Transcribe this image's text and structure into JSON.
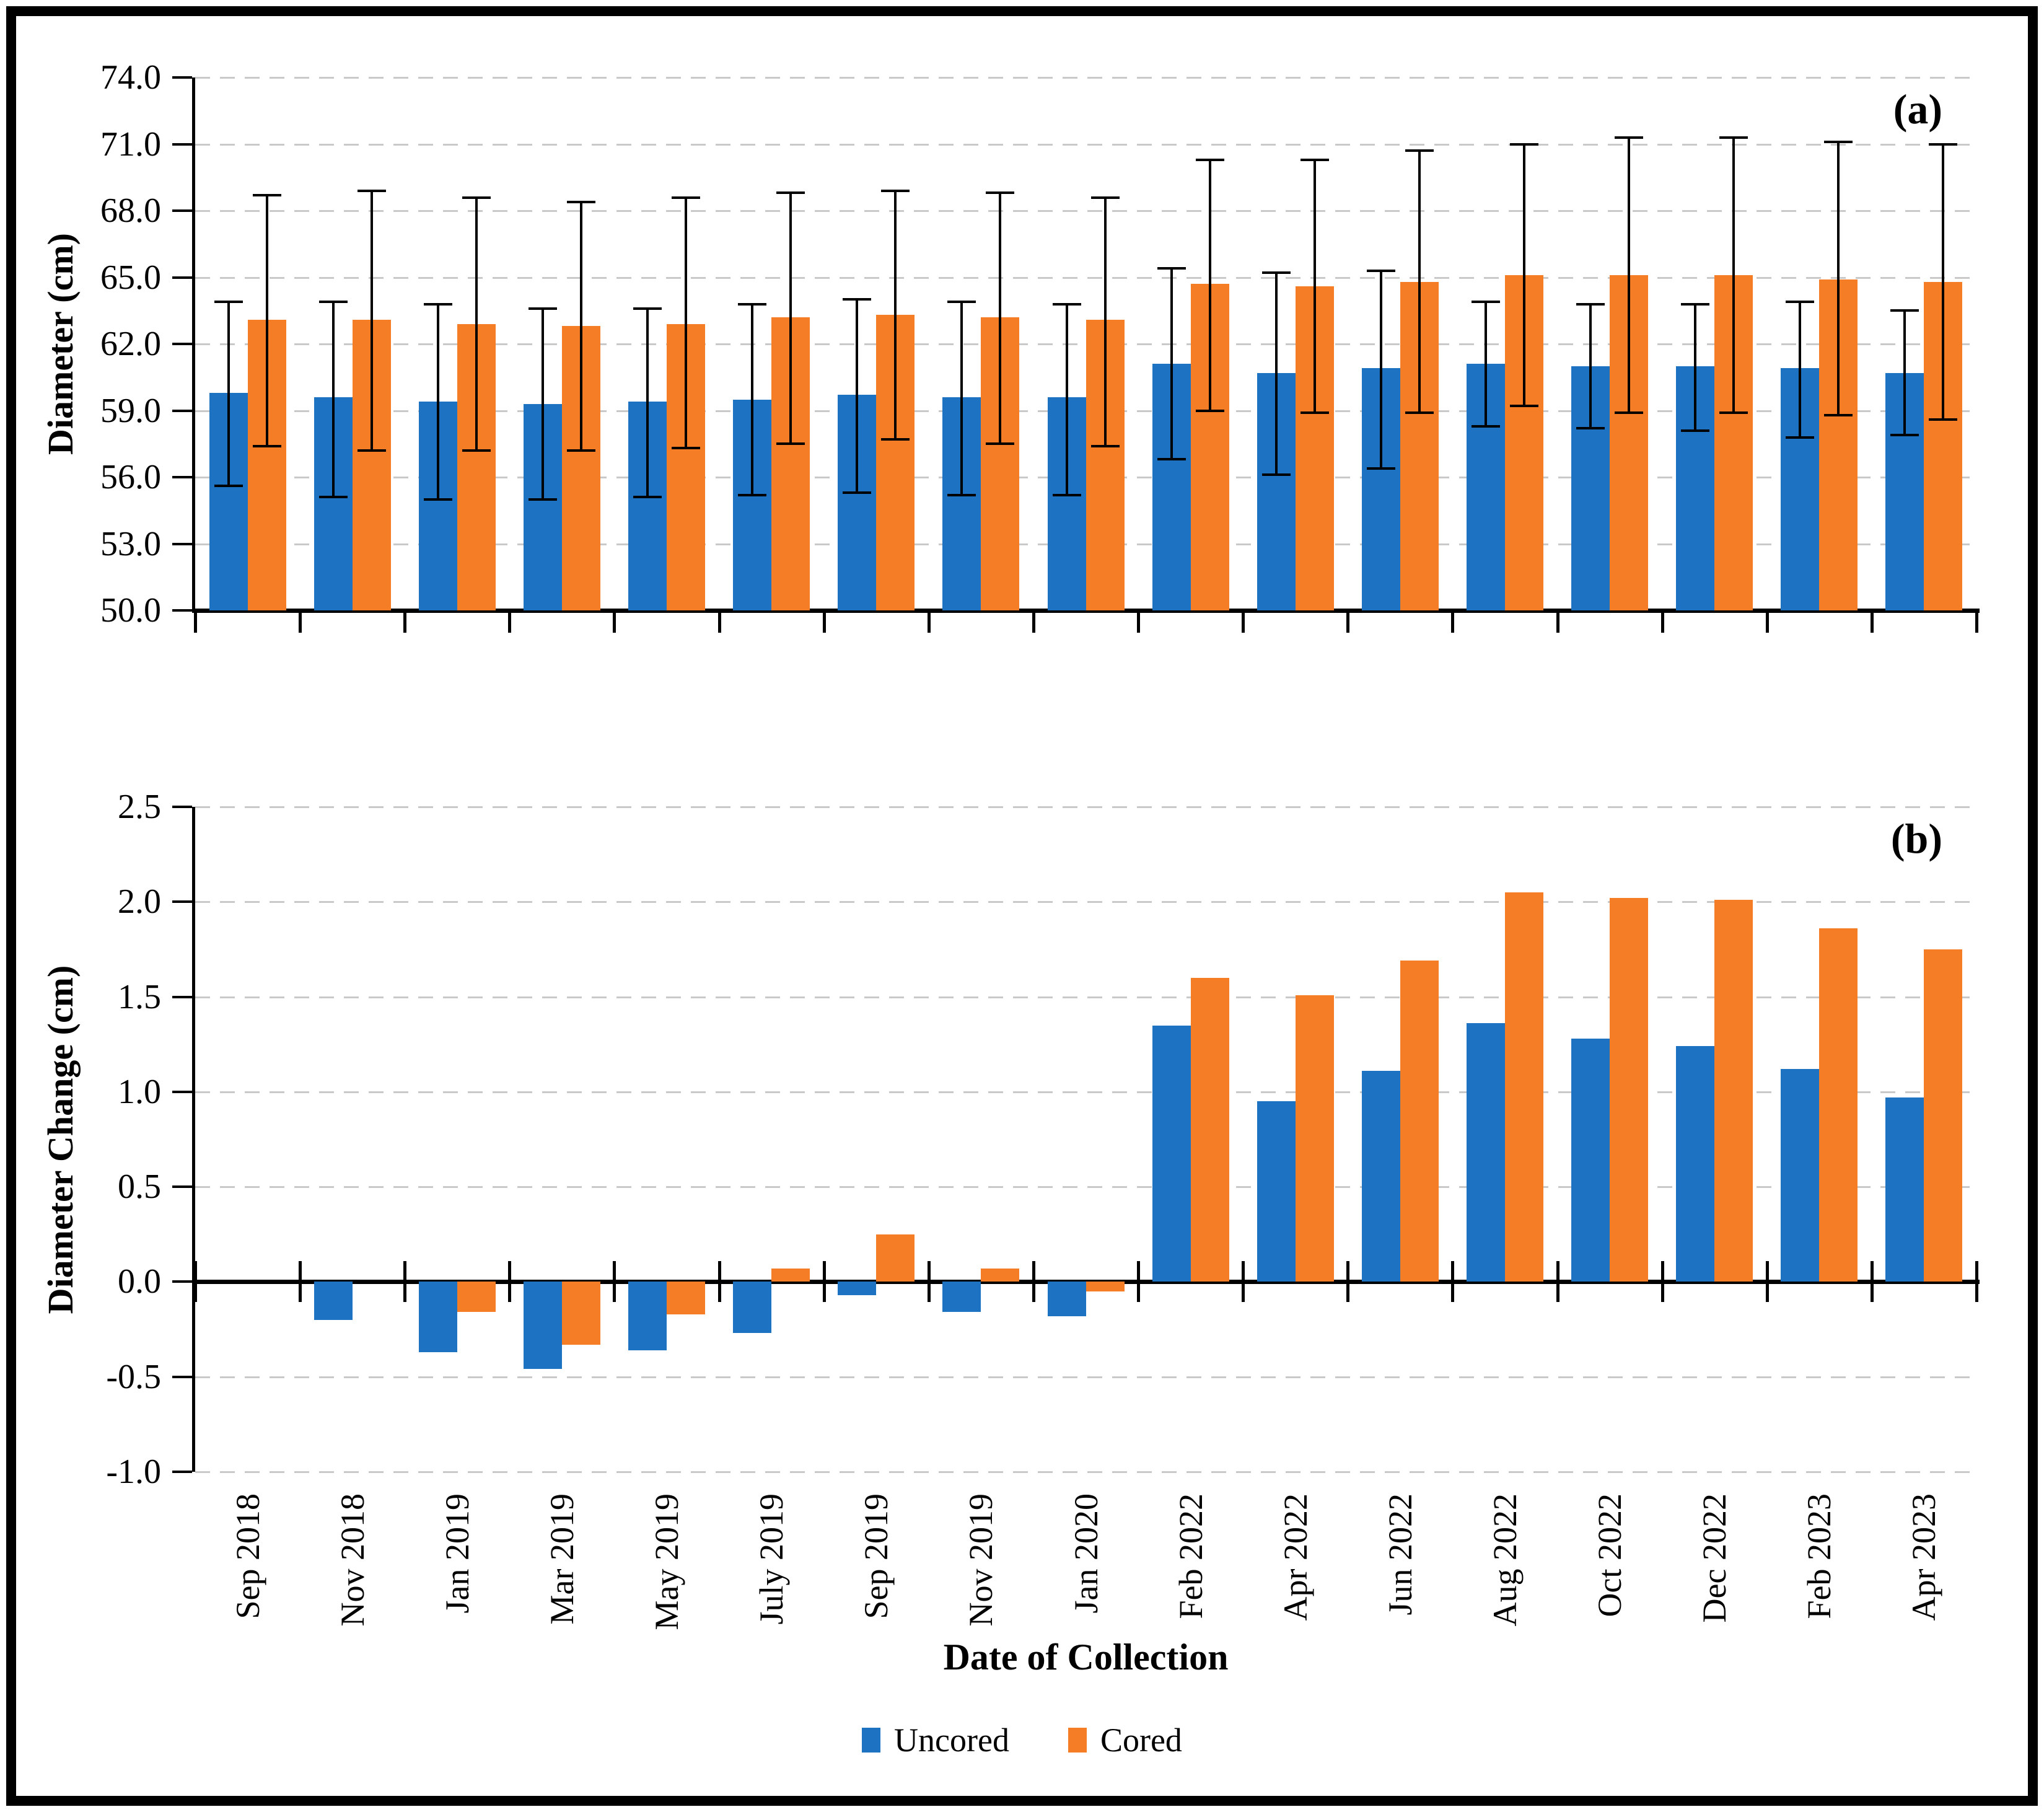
{
  "figure": {
    "x_axis_title": "Date of Collection",
    "legend": [
      {
        "label": "Uncored",
        "color": "#1D72C2"
      },
      {
        "label": "Cored",
        "color": "#F47D26"
      }
    ],
    "colors": {
      "grid": "#C9C9C9",
      "axis": "#000000",
      "background": "#FFFFFF"
    }
  },
  "chart_data": [
    {
      "id": "a",
      "type": "bar",
      "panel_label": "(a)",
      "ylabel": "Diameter (cm)",
      "ylim": [
        50.0,
        74.0
      ],
      "yticks": [
        50.0,
        53.0,
        56.0,
        59.0,
        62.0,
        65.0,
        68.0,
        71.0,
        74.0
      ],
      "grid": true,
      "legend_position": "bottom",
      "categories": [
        "Sep 2018",
        "Nov 2018",
        "Jan 2019",
        "Mar 2019",
        "May 2019",
        "July 2019",
        "Sep 2019",
        "Nov 2019",
        "Jan 2020",
        "Feb 2022",
        "Apr 2022",
        "Jun 2022",
        "Aug 2022",
        "Oct 2022",
        "Dec 2022",
        "Feb 2023",
        "Apr 2023"
      ],
      "series": [
        {
          "name": "Uncored",
          "color": "#1D72C2",
          "values": [
            59.8,
            59.6,
            59.4,
            59.3,
            59.4,
            59.5,
            59.7,
            59.6,
            59.6,
            61.1,
            60.7,
            60.9,
            61.1,
            61.0,
            61.0,
            60.9,
            60.7
          ],
          "err_low": [
            55.6,
            55.1,
            55.0,
            55.0,
            55.1,
            55.2,
            55.3,
            55.2,
            55.2,
            56.8,
            56.1,
            56.4,
            58.3,
            58.2,
            58.1,
            57.8,
            57.9
          ],
          "err_high": [
            63.9,
            63.9,
            63.8,
            63.6,
            63.6,
            63.8,
            64.0,
            63.9,
            63.8,
            65.4,
            65.2,
            65.3,
            63.9,
            63.8,
            63.8,
            63.9,
            63.5
          ]
        },
        {
          "name": "Cored",
          "color": "#F47D26",
          "values": [
            63.1,
            63.1,
            62.9,
            62.8,
            62.9,
            63.2,
            63.3,
            63.2,
            63.1,
            64.7,
            64.6,
            64.8,
            65.1,
            65.1,
            65.1,
            64.9,
            64.8
          ],
          "err_low": [
            57.4,
            57.2,
            57.2,
            57.2,
            57.3,
            57.5,
            57.7,
            57.5,
            57.4,
            59.0,
            58.9,
            58.9,
            59.2,
            58.9,
            58.9,
            58.8,
            58.6
          ],
          "err_high": [
            68.7,
            68.9,
            68.6,
            68.4,
            68.6,
            68.8,
            68.9,
            68.8,
            68.6,
            70.3,
            70.3,
            70.7,
            71.0,
            71.3,
            71.3,
            71.1,
            71.0
          ]
        }
      ]
    },
    {
      "id": "b",
      "type": "bar",
      "panel_label": "(b)",
      "ylabel": "Diameter  Change (cm)",
      "ylim": [
        -1.0,
        2.5
      ],
      "yticks": [
        -1.0,
        -0.5,
        0.0,
        0.5,
        1.0,
        1.5,
        2.0,
        2.5
      ],
      "grid": true,
      "baseline": 0.0,
      "categories": [
        "Sep 2018",
        "Nov 2018",
        "Jan 2019",
        "Mar 2019",
        "May 2019",
        "July 2019",
        "Sep 2019",
        "Nov 2019",
        "Jan 2020",
        "Feb 2022",
        "Apr 2022",
        "Jun 2022",
        "Aug 2022",
        "Oct 2022",
        "Dec 2022",
        "Feb 2023",
        "Apr 2023"
      ],
      "series": [
        {
          "name": "Uncored",
          "color": "#1D72C2",
          "values": [
            0.0,
            -0.2,
            -0.37,
            -0.46,
            -0.36,
            -0.27,
            -0.07,
            -0.16,
            -0.18,
            1.35,
            0.95,
            1.11,
            1.36,
            1.28,
            1.24,
            1.12,
            0.97
          ]
        },
        {
          "name": "Cored",
          "color": "#F47D26",
          "values": [
            0.0,
            0.0,
            -0.16,
            -0.33,
            -0.17,
            0.07,
            0.25,
            0.07,
            -0.05,
            1.6,
            1.51,
            1.69,
            2.05,
            2.02,
            2.01,
            1.86,
            1.75
          ]
        }
      ]
    }
  ]
}
